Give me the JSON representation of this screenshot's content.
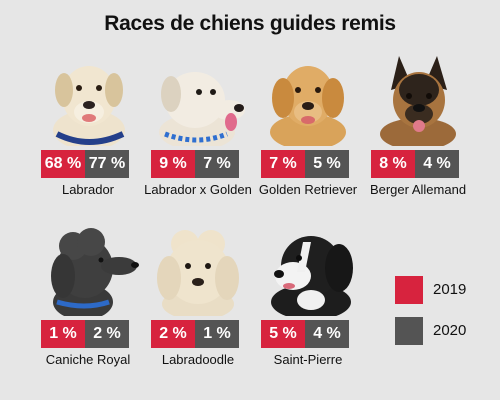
{
  "chart_data": {
    "type": "bar",
    "title": "Races de chiens guides remis",
    "series": [
      {
        "name": "2019",
        "color": "#d7233e",
        "values": [
          68,
          9,
          7,
          8,
          1,
          2,
          5
        ],
        "labels": [
          "68 %",
          "9 %",
          "7 %",
          "8 %",
          "1 %",
          "2 %",
          "5 %"
        ]
      },
      {
        "name": "2020",
        "color": "#545454",
        "values": [
          77,
          7,
          5,
          4,
          2,
          1,
          4
        ],
        "labels": [
          "77 %",
          "7 %",
          "5 %",
          "4 %",
          "2 %",
          "1 %",
          "4 %"
        ]
      }
    ],
    "categories": [
      "Labrador",
      "Labrador x Golden",
      "Golden Retriever",
      "Berger Allemand",
      "Caniche Royal",
      "Labradoodle",
      "Saint-Pierre"
    ],
    "icons": [
      "labrador-dog-photo",
      "labrador-x-golden-dog-photo",
      "golden-retriever-dog-photo",
      "berger-allemand-dog-photo",
      "caniche-royal-dog-photo",
      "labradoodle-dog-photo",
      "saint-pierre-dog-photo"
    ],
    "legend": [
      "2019",
      "2020"
    ],
    "legend_position": "right"
  }
}
